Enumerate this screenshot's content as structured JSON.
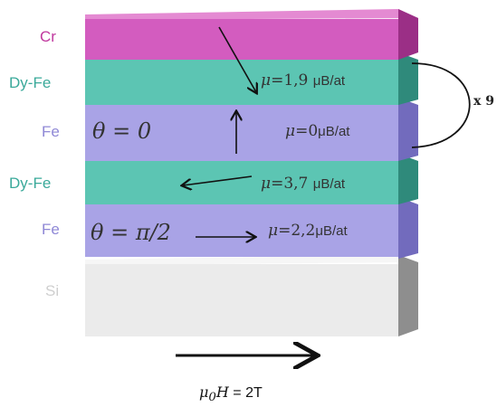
{
  "layers": [
    {
      "material": "Cr",
      "label_color": "#c0389e",
      "front": "#d35cbf",
      "top": "#e48ad2",
      "side": "#9b2f86"
    },
    {
      "material": "Dy-Fe",
      "label_color": "#3aa99a",
      "front": "#5cc5b3",
      "top": "#8fdcce",
      "side": "#2f8a7b",
      "moment": "1,9",
      "moment_symbol": "μ",
      "moment_unit": "μB/at"
    },
    {
      "material": "Fe",
      "label_color": "#8f88d6",
      "front": "#a9a3e6",
      "top": "#c9c5f2",
      "side": "#726bbd",
      "theta": "θ = 0",
      "moment": "0",
      "moment_symbol": "μ",
      "moment_unit": "μB/at"
    },
    {
      "material": "Dy-Fe",
      "label_color": "#3aa99a",
      "front": "#5cc5b3",
      "top": "#8fdcce",
      "side": "#2f8a7b",
      "moment": "3,7",
      "moment_symbol": "μ",
      "moment_unit": "μB/at"
    },
    {
      "material": "Fe",
      "label_color": "#8f88d6",
      "front": "#a9a3e6",
      "top": "#c9c5f2",
      "side": "#726bbd",
      "theta": "θ = π/2",
      "moment": "2,2",
      "moment_symbol": "μ",
      "moment_unit": "μB/at"
    },
    {
      "material": "Si",
      "label_color": "#cfcfcf",
      "front": "#ebebeb",
      "top": "#f6f6f6",
      "side": "#8e8e8e"
    }
  ],
  "repeat_label": "x 9",
  "field": {
    "symbol": "μ",
    "subscript": "0",
    "variable": "H",
    "equals": " = ",
    "value": "2T"
  }
}
